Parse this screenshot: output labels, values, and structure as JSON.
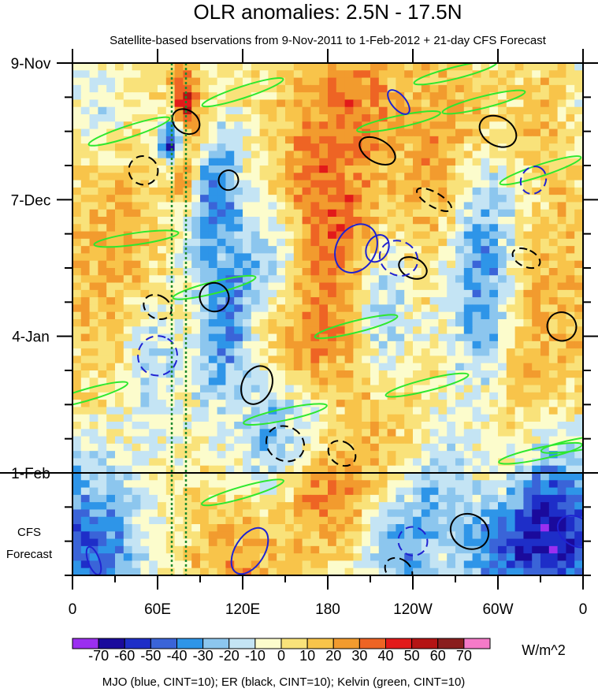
{
  "chart_data": {
    "type": "heatmap",
    "title": "OLR anomalies: 2.5N - 17.5N",
    "subtitle": "Satellite-based bservations from 9-Nov-2011 to 1-Feb-2012 + 21-day CFS Forecast",
    "x_ticks": [
      "0",
      "60E",
      "120E",
      "180",
      "120W",
      "60W",
      "0"
    ],
    "x_range_deg_east": [
      0,
      360
    ],
    "y_ticks": [
      "9-Nov",
      "7-Dec",
      "4-Jan",
      "1-Feb"
    ],
    "y_range_days": [
      0,
      105
    ],
    "y_tick_days": [
      0,
      28,
      56,
      84
    ],
    "observation_end_day": 84,
    "forecast_label_lines": [
      "CFS",
      "Forecast"
    ],
    "colorbar": {
      "levels": [
        -70,
        -60,
        -50,
        -40,
        -30,
        -20,
        -10,
        0,
        10,
        20,
        30,
        40,
        50,
        60,
        70
      ],
      "label_values": [
        "-70",
        "-60",
        "-50",
        "-40",
        "-30",
        "-20",
        "-10",
        "0",
        "10",
        "20",
        "30",
        "40",
        "50",
        "60",
        "70"
      ],
      "colors": [
        "#9b2ff0",
        "#1a0a9c",
        "#1e2ec8",
        "#3a64d8",
        "#2e95e8",
        "#8cc6ee",
        "#c4e4f4",
        "#fcfccc",
        "#f9e27a",
        "#f8c44a",
        "#f29b2e",
        "#ee6424",
        "#e21a1a",
        "#b41414",
        "#8a1e1e",
        "#f57ac8"
      ],
      "units": "W/m^2"
    },
    "overlays_caption": "MJO (blue, CINT=10); ER (black, CINT=10); Kelvin (green, CINT=10)",
    "overlay_colors": {
      "mjo": "#1f22d2",
      "er": "#000000",
      "kelvin": "#2ee82e",
      "marker": "#1f8a2e"
    },
    "marker_lines_deg_east": [
      70,
      80
    ]
  }
}
